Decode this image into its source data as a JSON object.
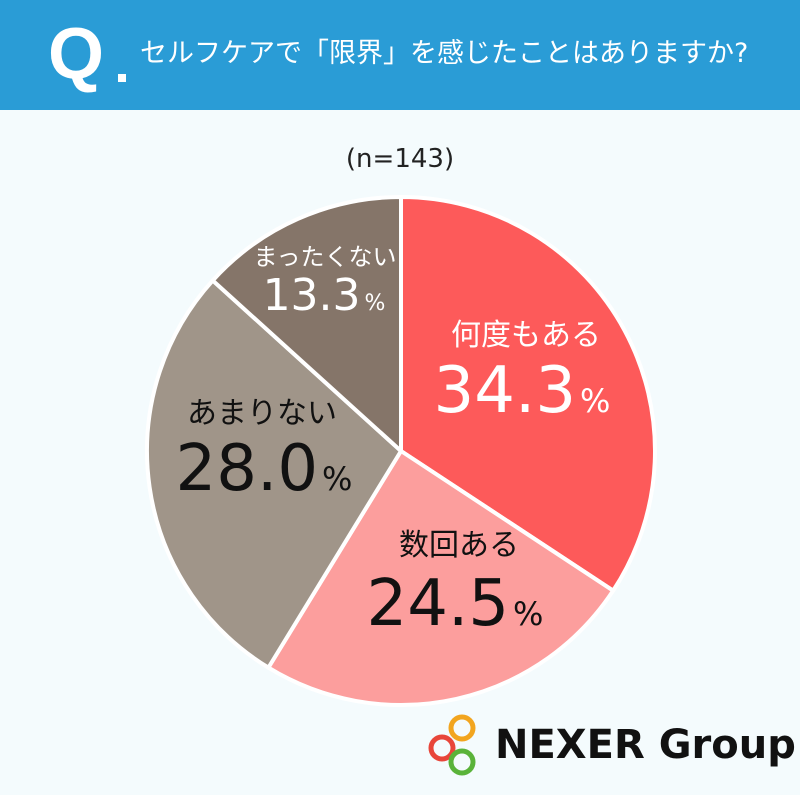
{
  "header": {
    "q_mark": "Q",
    "question": "セルフケアで「限界」を感じたことはありますか?"
  },
  "sample_size": "(n=143)",
  "logo": {
    "text": "NEXER Group",
    "ring_colors": [
      "#E8463A",
      "#F2A51F",
      "#5AB33A"
    ]
  },
  "chart_data": {
    "type": "pie",
    "title": "セルフケアで「限界」を感じたことはありますか?",
    "note": "(n=143)",
    "start_angle_deg": 0,
    "direction": "clockwise",
    "unit": "%",
    "slices": [
      {
        "label": "何度もある",
        "value": 34.3,
        "display": "34.3",
        "color": "#FD5A5A",
        "text_color": "#FFFFFF"
      },
      {
        "label": "数回ある",
        "value": 24.5,
        "display": "24.5",
        "color": "#FC9E9D",
        "text_color": "#111111"
      },
      {
        "label": "あまりない",
        "value": 28.0,
        "display": "28.0",
        "color": "#A09589",
        "text_color": "#111111"
      },
      {
        "label": "まったくない",
        "value": 13.3,
        "display": "13.3",
        "color": "#857569",
        "text_color": "#FFFFFF"
      }
    ]
  }
}
